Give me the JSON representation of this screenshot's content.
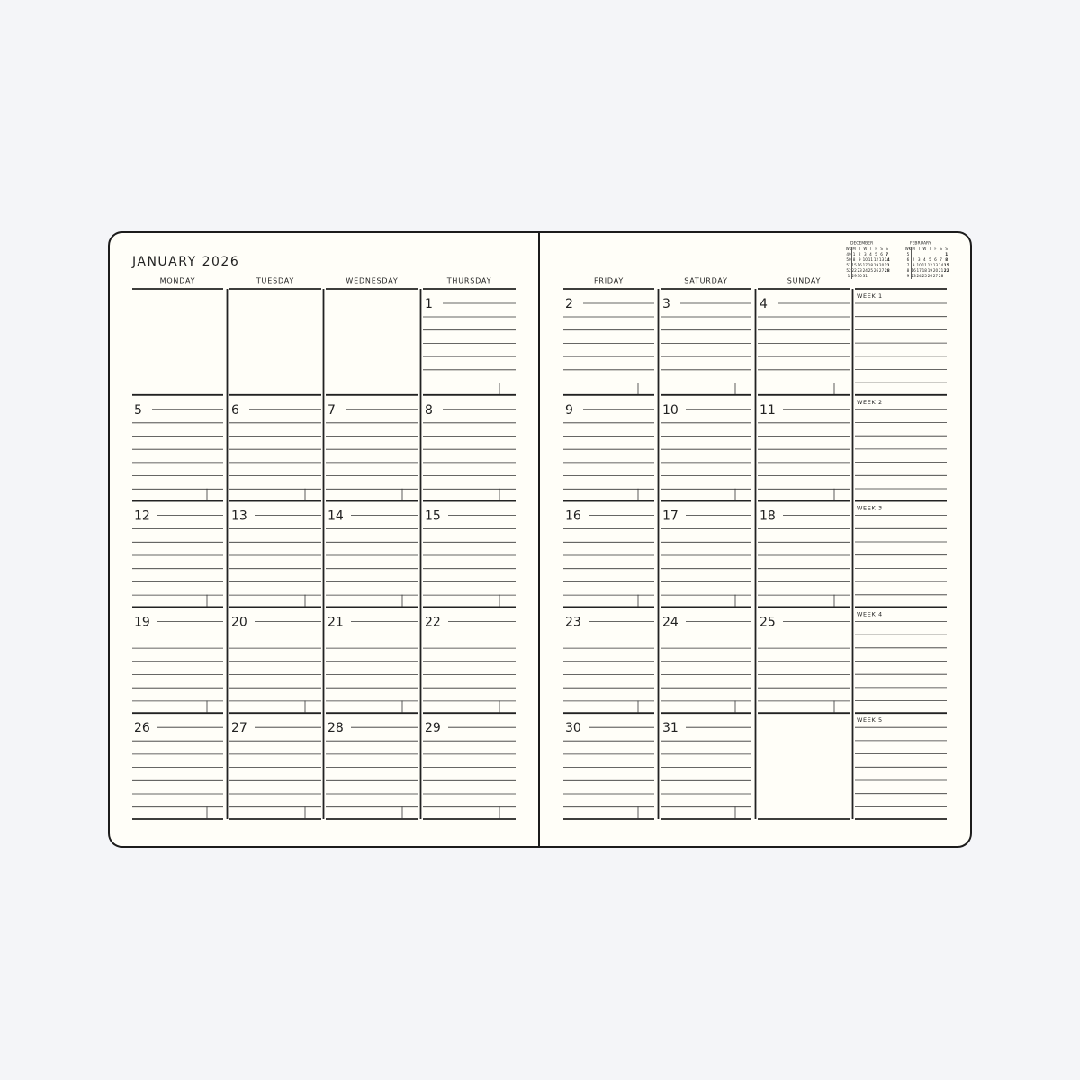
{
  "left_page": {
    "title": "JANUARY 2026",
    "weekdays": [
      "MONDAY",
      "TUESDAY",
      "WEDNESDAY",
      "THURSDAY"
    ],
    "weeks": [
      [
        null,
        null,
        null,
        1
      ],
      [
        5,
        6,
        7,
        8
      ],
      [
        12,
        13,
        14,
        15
      ],
      [
        19,
        20,
        21,
        22
      ],
      [
        26,
        27,
        28,
        29
      ]
    ]
  },
  "right_page": {
    "weekdays": [
      "FRIDAY",
      "SATURDAY",
      "SUNDAY"
    ],
    "weeks": [
      [
        2,
        3,
        4
      ],
      [
        9,
        10,
        11
      ],
      [
        16,
        17,
        18
      ],
      [
        23,
        24,
        25
      ],
      [
        30,
        31,
        null
      ]
    ],
    "week_labels": [
      "WEEK 1",
      "WEEK 2",
      "WEEK 3",
      "WEEK 4",
      "WEEK 5"
    ]
  },
  "mini_calendars": [
    {
      "month": "DECEMBER",
      "header": [
        "WK",
        "M",
        "T",
        "W",
        "T",
        "F",
        "S",
        "S"
      ],
      "rows": [
        [
          49,
          1,
          2,
          3,
          4,
          5,
          6,
          7
        ],
        [
          50,
          8,
          9,
          10,
          11,
          12,
          13,
          14
        ],
        [
          51,
          15,
          16,
          17,
          18,
          19,
          20,
          21
        ],
        [
          52,
          22,
          23,
          24,
          25,
          26,
          27,
          28
        ],
        [
          1,
          29,
          30,
          31,
          null,
          null,
          null,
          null
        ]
      ]
    },
    {
      "month": "FEBRUARY",
      "header": [
        "WK",
        "M",
        "T",
        "W",
        "T",
        "F",
        "S",
        "S"
      ],
      "rows": [
        [
          5,
          null,
          null,
          null,
          null,
          null,
          null,
          1
        ],
        [
          6,
          2,
          3,
          4,
          5,
          6,
          7,
          8
        ],
        [
          7,
          9,
          10,
          11,
          12,
          13,
          14,
          15
        ],
        [
          8,
          16,
          17,
          18,
          19,
          20,
          21,
          22
        ],
        [
          9,
          23,
          24,
          25,
          26,
          27,
          28,
          null
        ]
      ]
    }
  ]
}
